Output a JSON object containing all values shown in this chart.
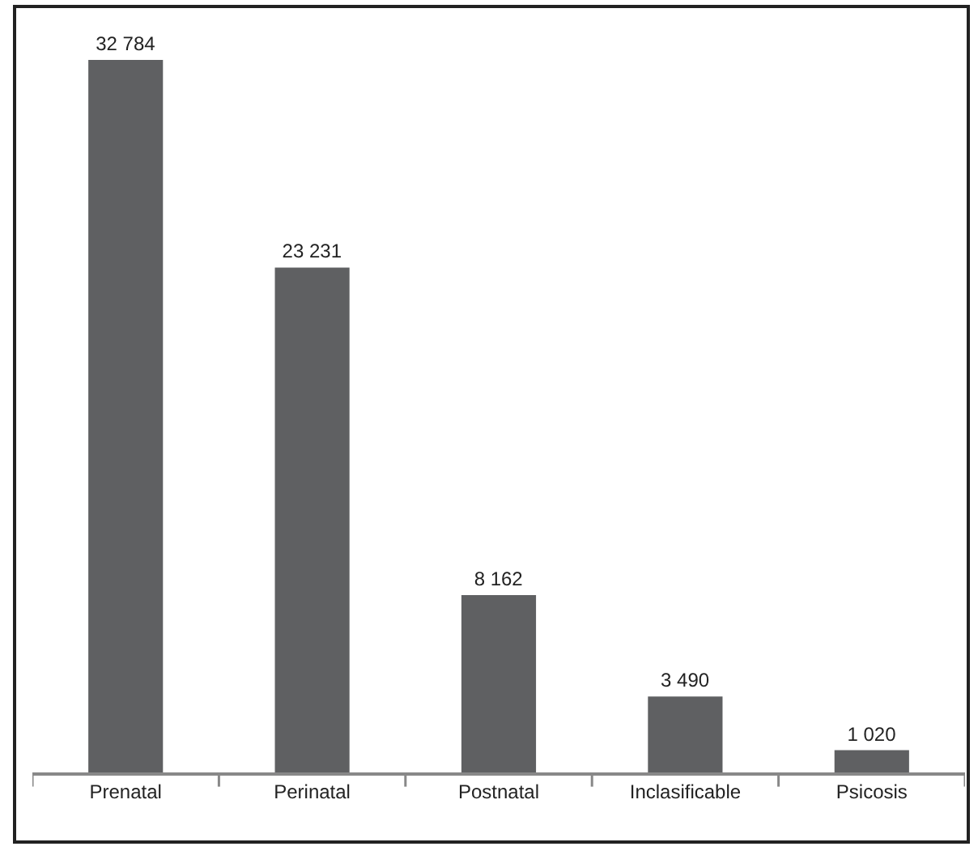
{
  "chart_data": {
    "type": "bar",
    "categories": [
      "Prenatal",
      "Perinatal",
      "Postnatal",
      "Inclasificable",
      "Psicosis"
    ],
    "values": [
      32784,
      23231,
      8162,
      3490,
      1020
    ],
    "value_labels": [
      "32 784",
      "23 231",
      "8 162",
      "3 490",
      "1 020"
    ],
    "color": "#5f6062"
  }
}
